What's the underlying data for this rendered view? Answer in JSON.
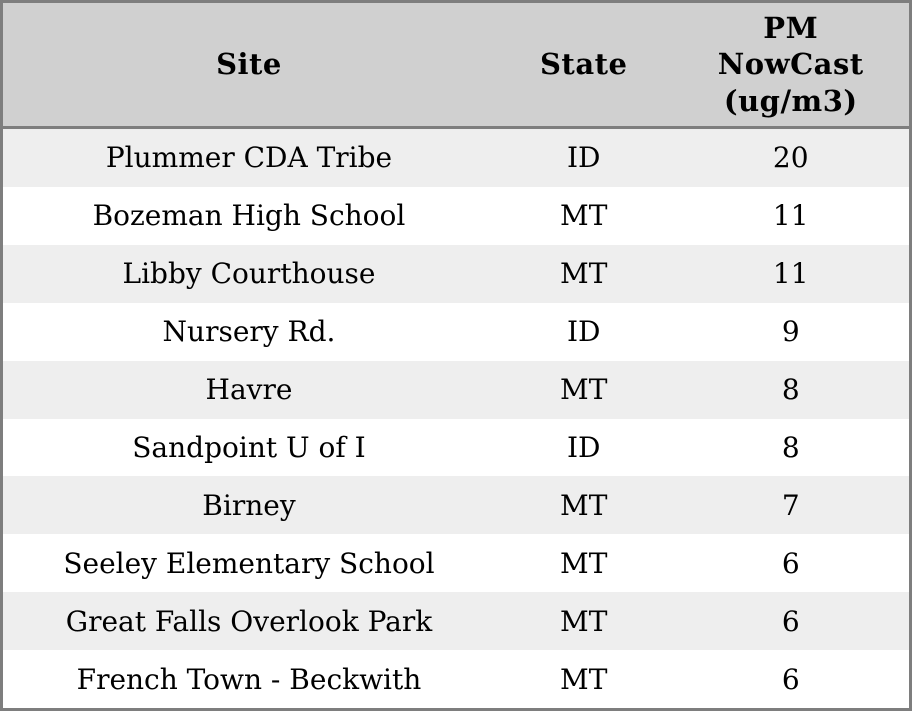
{
  "header": {
    "site": "Site",
    "state": "State",
    "pm": "PM\nNowCast\n(ug/m3)"
  },
  "colors": {
    "header_bg": "#d0d0d0",
    "row_stripe": "#eeeeee",
    "row_alt": "#ffffff",
    "border": "#7e7e7e",
    "text": "#000000"
  },
  "chart_data": {
    "type": "table",
    "title": "",
    "columns": [
      "Site",
      "State",
      "PM NowCast (ug/m3)"
    ],
    "rows": [
      {
        "site": "Plummer CDA Tribe",
        "state": "ID",
        "pm_nowcast": "20"
      },
      {
        "site": "Bozeman High School",
        "state": "MT",
        "pm_nowcast": "11"
      },
      {
        "site": "Libby Courthouse",
        "state": "MT",
        "pm_nowcast": "11"
      },
      {
        "site": "Nursery Rd.",
        "state": "ID",
        "pm_nowcast": "9"
      },
      {
        "site": "Havre",
        "state": "MT",
        "pm_nowcast": "8"
      },
      {
        "site": "Sandpoint U of I",
        "state": "ID",
        "pm_nowcast": "8"
      },
      {
        "site": "Birney",
        "state": "MT",
        "pm_nowcast": "7"
      },
      {
        "site": "Seeley Elementary School",
        "state": "MT",
        "pm_nowcast": "6"
      },
      {
        "site": "Great Falls Overlook Park",
        "state": "MT",
        "pm_nowcast": "6"
      },
      {
        "site": "French Town - Beckwith",
        "state": "MT",
        "pm_nowcast": "6"
      }
    ]
  }
}
